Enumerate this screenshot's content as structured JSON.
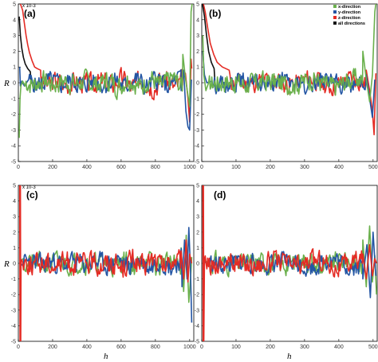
{
  "colors": {
    "x": "#6ab04c",
    "y": "#2456a4",
    "z": "#e42b24",
    "all": "#111111"
  },
  "chart_data": [
    {
      "type": "line",
      "panel": "(a)",
      "xlim": [
        0,
        1024
      ],
      "ylim": [
        -5,
        5
      ],
      "y_multiplier": "x 10-3",
      "xticks": [
        0,
        200,
        400,
        600,
        800,
        1000
      ],
      "yticks": [
        -5,
        -4,
        -3,
        -2,
        -1,
        0,
        1,
        2,
        3,
        4,
        5
      ],
      "xlabel": "",
      "ylabel": "R",
      "legend": {
        "position": "top-right",
        "items": [
          "x-direction",
          "y-direction",
          "z-direction",
          "all directions"
        ]
      },
      "series": [
        {
          "name": "z-direction",
          "color": "#e42b24",
          "noise": 0.6,
          "seed": 3,
          "head": [
            [
              12,
              5.0
            ],
            [
              25,
              4.6
            ],
            [
              35,
              3.8
            ],
            [
              45,
              3.0
            ],
            [
              55,
              2.4
            ],
            [
              65,
              1.9
            ],
            [
              80,
              1.4
            ],
            [
              95,
              1.0
            ],
            [
              110,
              0.9
            ],
            [
              130,
              0.8
            ]
          ],
          "tail": [
            [
              960,
              0.5
            ],
            [
              975,
              0.6
            ],
            [
              990,
              -1.0
            ],
            [
              1000,
              -2.5
            ],
            [
              1008,
              1.5
            ],
            [
              1012,
              0.9
            ]
          ]
        },
        {
          "name": "all directions",
          "color": "#111111",
          "noise": 0.15,
          "seed": 9,
          "head": [
            [
              5,
              4.2
            ],
            [
              12,
              3.0
            ],
            [
              20,
              2.2
            ],
            [
              30,
              1.6
            ],
            [
              40,
              1.2
            ],
            [
              55,
              0.9
            ],
            [
              70,
              0.7
            ]
          ],
          "end": 75
        },
        {
          "name": "y-direction",
          "color": "#2456a4",
          "noise": 0.55,
          "seed": 5,
          "head": [
            [
              8,
              1.0
            ],
            [
              12,
              -0.2
            ],
            [
              20,
              0.1
            ],
            [
              35,
              -0.2
            ],
            [
              60,
              0.2
            ]
          ],
          "tail": [
            [
              950,
              -0.5
            ],
            [
              965,
              0.8
            ],
            [
              978,
              -1.8
            ],
            [
              990,
              -2.8
            ],
            [
              1000,
              -3.0
            ],
            [
              1010,
              0.2
            ]
          ]
        },
        {
          "name": "x-direction",
          "color": "#6ab04c",
          "noise": 0.6,
          "seed": 7,
          "head": [
            [
              5,
              -3.5
            ],
            [
              10,
              -1.0
            ],
            [
              15,
              -0.2
            ],
            [
              25,
              0.1
            ],
            [
              40,
              -0.2
            ]
          ],
          "tail": [
            [
              960,
              1.8
            ],
            [
              975,
              0.3
            ],
            [
              990,
              -0.8
            ],
            [
              1000,
              -1.5
            ],
            [
              1008,
              4.5
            ],
            [
              1014,
              5.0
            ]
          ]
        }
      ]
    },
    {
      "type": "line",
      "panel": "(b)",
      "xlim": [
        0,
        512
      ],
      "ylim": [
        -5,
        5
      ],
      "xticks": [
        0,
        100,
        200,
        300,
        400,
        500
      ],
      "yticks": [
        -5,
        -4,
        -3,
        -2,
        -1,
        0,
        1,
        2,
        3,
        4,
        5
      ],
      "xlabel": "",
      "ylabel": "",
      "series": [
        {
          "name": "z-direction",
          "color": "#e42b24",
          "noise": 0.55,
          "seed": 11,
          "head": [
            [
              5,
              5.0
            ],
            [
              10,
              4.5
            ],
            [
              18,
              3.4
            ],
            [
              25,
              2.5
            ],
            [
              35,
              1.8
            ],
            [
              45,
              1.3
            ],
            [
              60,
              1.0
            ],
            [
              80,
              0.8
            ]
          ],
          "tail": [
            [
              480,
              0.8
            ],
            [
              490,
              -0.5
            ],
            [
              498,
              -1.8
            ],
            [
              503,
              -3.3
            ],
            [
              508,
              0.6
            ]
          ]
        },
        {
          "name": "all directions",
          "color": "#111111",
          "noise": 0.15,
          "seed": 13,
          "head": [
            [
              2,
              5.0
            ],
            [
              8,
              4.2
            ],
            [
              14,
              3.0
            ],
            [
              20,
              2.0
            ],
            [
              28,
              1.3
            ],
            [
              36,
              0.9
            ]
          ],
          "end": 40
        },
        {
          "name": "y-direction",
          "color": "#2456a4",
          "noise": 0.5,
          "seed": 15,
          "head": [
            [
              3,
              2.0
            ],
            [
              8,
              0.5
            ],
            [
              15,
              0.0
            ],
            [
              30,
              0.1
            ]
          ],
          "tail": [
            [
              480,
              0.5
            ],
            [
              490,
              -1.0
            ],
            [
              498,
              -2.2
            ],
            [
              505,
              0.2
            ]
          ]
        },
        {
          "name": "x-direction",
          "color": "#6ab04c",
          "noise": 0.6,
          "seed": 17,
          "head": [
            [
              3,
              3.0
            ],
            [
              6,
              0.5
            ],
            [
              12,
              -0.5
            ],
            [
              20,
              0.0
            ]
          ],
          "tail": [
            [
              470,
              2.0
            ],
            [
              480,
              0.2
            ],
            [
              490,
              -1.2
            ],
            [
              498,
              0.5
            ],
            [
              505,
              4.5
            ],
            [
              508,
              5.0
            ]
          ]
        }
      ]
    },
    {
      "type": "line",
      "panel": "(c)",
      "xlim": [
        0,
        1024
      ],
      "ylim": [
        -5,
        5
      ],
      "y_multiplier": "x 10-3",
      "xticks": [
        0,
        200,
        400,
        600,
        800,
        1000
      ],
      "yticks": [
        -5,
        -4,
        -3,
        -2,
        -1,
        0,
        1,
        2,
        3,
        4,
        5
      ],
      "xlabel": "h",
      "ylabel": "R",
      "series": [
        {
          "name": "x-direction",
          "color": "#6ab04c",
          "noise": 0.6,
          "seed": 21,
          "head": [
            [
              14,
              0.2
            ],
            [
              30,
              0.3
            ]
          ],
          "tail": [
            [
              950,
              1.0
            ],
            [
              965,
              -1.8
            ],
            [
              980,
              1.8
            ],
            [
              995,
              -2.5
            ],
            [
              1005,
              -1.0
            ],
            [
              1012,
              0.4
            ]
          ]
        },
        {
          "name": "y-direction",
          "color": "#2456a4",
          "noise": 0.6,
          "seed": 23,
          "head": [
            [
              14,
              0.0
            ],
            [
              30,
              -0.2
            ]
          ],
          "tail": [
            [
              955,
              -1.5
            ],
            [
              970,
              1.5
            ],
            [
              985,
              -1.0
            ],
            [
              995,
              2.3
            ],
            [
              1005,
              -0.5
            ],
            [
              1012,
              -3.8
            ]
          ]
        },
        {
          "name": "z-direction",
          "color": "#e42b24",
          "noise": 0.65,
          "seed": 25,
          "spike": [
            [
              8,
              5.0
            ],
            [
              10,
              -5.0
            ],
            [
              12,
              5.0
            ],
            [
              14,
              -5.0
            ],
            [
              16,
              0.2
            ]
          ],
          "tail": [
            [
              950,
              0.8
            ],
            [
              965,
              -1.0
            ],
            [
              980,
              1.5
            ],
            [
              990,
              -1.2
            ],
            [
              1000,
              0.6
            ],
            [
              1012,
              0.0
            ]
          ]
        }
      ]
    },
    {
      "type": "line",
      "panel": "(d)",
      "xlim": [
        0,
        512
      ],
      "ylim": [
        -5,
        5
      ],
      "xticks": [
        0,
        100,
        200,
        300,
        400,
        500
      ],
      "yticks": [
        -5,
        -4,
        -3,
        -2,
        -1,
        0,
        1,
        2,
        3,
        4,
        5
      ],
      "xlabel": "h",
      "ylabel": "",
      "series": [
        {
          "name": "x-direction",
          "color": "#6ab04c",
          "noise": 0.6,
          "seed": 31,
          "head": [
            [
              8,
              0.2
            ],
            [
              20,
              0.0
            ]
          ],
          "tail": [
            [
              470,
              1.5
            ],
            [
              480,
              -1.5
            ],
            [
              490,
              2.4
            ],
            [
              498,
              -1.2
            ],
            [
              505,
              0.5
            ],
            [
              510,
              -2.0
            ]
          ]
        },
        {
          "name": "y-direction",
          "color": "#2456a4",
          "noise": 0.55,
          "seed": 33,
          "head": [
            [
              8,
              0.1
            ],
            [
              20,
              -0.1
            ]
          ],
          "tail": [
            [
              470,
              -1.0
            ],
            [
              482,
              1.2
            ],
            [
              492,
              -2.2
            ],
            [
              500,
              2.0
            ],
            [
              508,
              -0.8
            ]
          ]
        },
        {
          "name": "z-direction",
          "color": "#e42b24",
          "noise": 0.6,
          "seed": 35,
          "spike": [
            [
              3,
              5.0
            ],
            [
              4,
              -5.0
            ],
            [
              5,
              5.0
            ],
            [
              6,
              -5.0
            ],
            [
              8,
              0.3
            ]
          ],
          "tail": [
            [
              470,
              0.6
            ],
            [
              480,
              -1.0
            ],
            [
              490,
              1.2
            ],
            [
              498,
              -0.8
            ],
            [
              505,
              0.3
            ],
            [
              510,
              0.0
            ]
          ]
        }
      ]
    }
  ]
}
